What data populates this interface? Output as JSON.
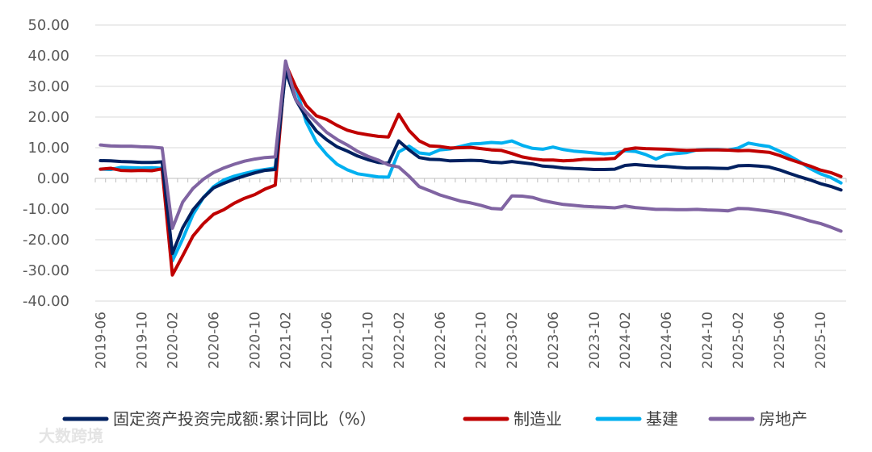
{
  "chart_data": {
    "type": "line",
    "title": "",
    "xlabel": "",
    "ylabel": "",
    "ylim": [
      -40,
      50
    ],
    "yticks": [
      "50.00",
      "40.00",
      "30.00",
      "20.00",
      "10.00",
      "0.00",
      "-10.00",
      "-20.00",
      "-30.00",
      "-40.00"
    ],
    "xtick_labels": [
      "2019-06",
      "2019-10",
      "2020-02",
      "2020-06",
      "2020-10",
      "2021-02",
      "2021-06",
      "2021-10",
      "2022-02",
      "2022-06",
      "2022-10",
      "2023-02",
      "2023-06",
      "2023-10",
      "2024-02",
      "2024-06",
      "2024-10",
      "2025-02",
      "2025-06",
      "2025-10"
    ],
    "x": [
      "2019-06",
      "2019-07",
      "2019-08",
      "2019-09",
      "2019-10",
      "2019-11",
      "2019-12",
      "2020-02",
      "2020-03",
      "2020-04",
      "2020-05",
      "2020-06",
      "2020-07",
      "2020-08",
      "2020-09",
      "2020-10",
      "2020-11",
      "2020-12",
      "2021-02",
      "2021-03",
      "2021-04",
      "2021-05",
      "2021-06",
      "2021-07",
      "2021-08",
      "2021-09",
      "2021-10",
      "2021-11",
      "2021-12",
      "2022-02",
      "2022-03",
      "2022-04",
      "2022-05",
      "2022-06",
      "2022-07",
      "2022-08",
      "2022-09",
      "2022-10",
      "2022-11",
      "2022-12",
      "2023-02",
      "2023-03",
      "2023-04",
      "2023-05",
      "2023-06",
      "2023-07",
      "2023-08",
      "2023-09",
      "2023-10",
      "2023-11",
      "2023-12",
      "2024-02",
      "2024-03",
      "2024-04",
      "2024-05",
      "2024-06",
      "2024-07",
      "2024-08",
      "2024-09",
      "2024-10",
      "2024-11",
      "2024-12",
      "2025-02",
      "2025-03",
      "2025-04",
      "2025-05",
      "2025-06",
      "2025-07",
      "2025-08",
      "2025-09",
      "2025-10",
      "2025-11",
      "2025-12"
    ],
    "series": [
      {
        "name": "固定资产投资完成额:累计同比（%）",
        "color": "#002060",
        "values": [
          5.8,
          5.7,
          5.5,
          5.4,
          5.2,
          5.2,
          5.4,
          -24.5,
          -16.1,
          -10.3,
          -6.3,
          -3.1,
          -1.6,
          -0.3,
          0.8,
          1.8,
          2.6,
          2.9,
          35.0,
          25.6,
          19.9,
          15.4,
          12.6,
          10.3,
          8.9,
          7.3,
          6.1,
          5.2,
          4.9,
          12.2,
          9.3,
          6.8,
          6.2,
          6.1,
          5.7,
          5.8,
          5.9,
          5.8,
          5.3,
          5.1,
          5.5,
          5.1,
          4.7,
          4.0,
          3.8,
          3.4,
          3.2,
          3.1,
          2.9,
          2.9,
          3.0,
          4.2,
          4.5,
          4.2,
          4.0,
          3.9,
          3.6,
          3.4,
          3.4,
          3.4,
          3.3,
          3.2,
          4.1,
          4.2,
          4.0,
          3.7,
          2.8,
          1.6,
          0.5,
          -0.5,
          -1.7,
          -2.6,
          -3.8
        ]
      },
      {
        "name": "制造业",
        "color": "#c00000",
        "values": [
          3.0,
          3.3,
          2.6,
          2.5,
          2.6,
          2.5,
          3.1,
          -31.5,
          -25.2,
          -18.8,
          -14.8,
          -11.7,
          -10.2,
          -8.1,
          -6.5,
          -5.3,
          -3.5,
          -2.2,
          37.3,
          29.8,
          23.8,
          20.4,
          19.2,
          17.3,
          15.7,
          14.8,
          14.2,
          13.7,
          13.5,
          20.9,
          15.6,
          12.2,
          10.6,
          10.4,
          9.9,
          10.0,
          10.1,
          9.7,
          9.3,
          9.1,
          8.1,
          7.0,
          6.4,
          6.0,
          6.0,
          5.7,
          5.9,
          6.2,
          6.2,
          6.3,
          6.5,
          9.4,
          9.9,
          9.7,
          9.6,
          9.5,
          9.3,
          9.1,
          9.2,
          9.3,
          9.3,
          9.2,
          9.0,
          9.1,
          8.8,
          8.5,
          7.5,
          6.2,
          5.1,
          4.0,
          2.7,
          1.9,
          0.6
        ]
      },
      {
        "name": "基建",
        "color": "#00b0f0",
        "values": [
          3.0,
          2.9,
          3.6,
          3.5,
          3.4,
          3.5,
          3.3,
          -26.9,
          -19.7,
          -11.8,
          -6.3,
          -2.7,
          -0.5,
          0.7,
          1.6,
          2.4,
          2.9,
          3.4,
          36.6,
          29.7,
          18.4,
          11.8,
          7.8,
          4.6,
          2.8,
          1.5,
          1.0,
          0.5,
          0.4,
          8.6,
          10.5,
          8.3,
          7.9,
          9.3,
          9.6,
          10.4,
          11.2,
          11.4,
          11.7,
          11.5,
          12.2,
          10.8,
          9.8,
          9.5,
          10.2,
          9.4,
          8.9,
          8.6,
          8.3,
          8.0,
          8.2,
          9.0,
          8.8,
          7.8,
          6.3,
          7.7,
          8.1,
          8.4,
          9.3,
          9.4,
          9.4,
          9.2,
          9.9,
          11.5,
          10.9,
          10.4,
          8.9,
          7.3,
          5.4,
          3.2,
          1.5,
          0.3,
          -1.5
        ]
      },
      {
        "name": "房地产",
        "color": "#8064a2",
        "values": [
          10.9,
          10.6,
          10.5,
          10.5,
          10.3,
          10.2,
          9.9,
          -16.3,
          -7.7,
          -3.3,
          -0.3,
          1.9,
          3.4,
          4.6,
          5.6,
          6.3,
          6.8,
          7.0,
          38.3,
          25.6,
          21.6,
          18.3,
          15.0,
          12.7,
          10.9,
          8.8,
          7.2,
          6.0,
          4.4,
          3.7,
          0.7,
          -2.7,
          -4.0,
          -5.4,
          -6.4,
          -7.4,
          -8.0,
          -8.8,
          -9.8,
          -10.0,
          -5.7,
          -5.8,
          -6.2,
          -7.2,
          -7.9,
          -8.5,
          -8.8,
          -9.1,
          -9.3,
          -9.4,
          -9.6,
          -9.0,
          -9.5,
          -9.8,
          -10.1,
          -10.1,
          -10.2,
          -10.2,
          -10.1,
          -10.3,
          -10.4,
          -10.6,
          -9.8,
          -9.9,
          -10.3,
          -10.7,
          -11.2,
          -12.0,
          -12.9,
          -13.9,
          -14.7,
          -15.9,
          -17.2
        ]
      }
    ],
    "legend_position": "bottom"
  },
  "watermark": "大数跨境"
}
